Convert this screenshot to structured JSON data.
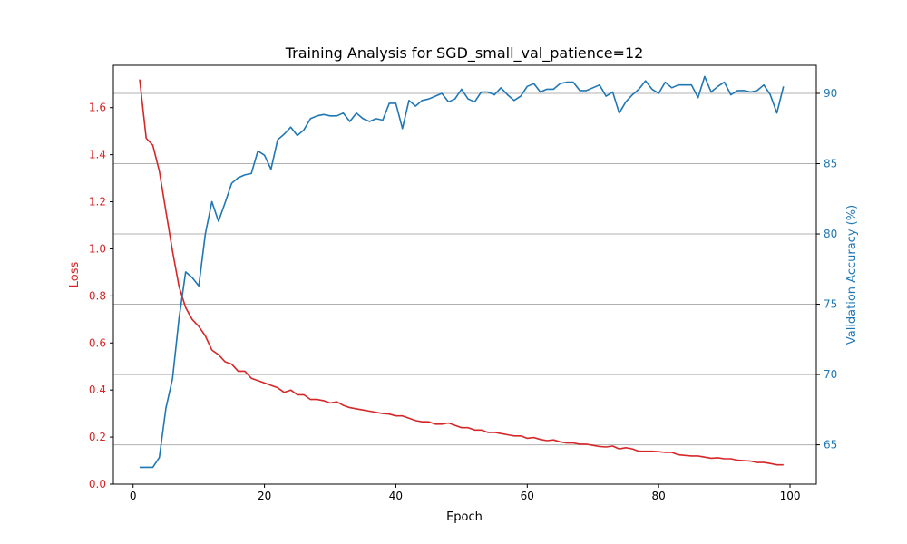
{
  "chart_data": {
    "type": "line",
    "title": "Training Analysis for SGD_small_val_patience=12",
    "xlabel": "Epoch",
    "ylabel_left": "Loss",
    "ylabel_right": "Validation Accuracy (%)",
    "xlim": [
      -3,
      104
    ],
    "ylim_left": [
      0,
      1.78
    ],
    "ylim_right": [
      62.2,
      92.0
    ],
    "x_ticks": [
      0,
      20,
      40,
      60,
      80,
      100
    ],
    "y_left_ticks": [
      0.0,
      0.2,
      0.4,
      0.6,
      0.8,
      1.0,
      1.2,
      1.4,
      1.6
    ],
    "y_right_ticks": [
      65,
      70,
      75,
      80,
      85,
      90
    ],
    "grid": "horizontal lines at right-axis ticks",
    "colors": {
      "loss": "#d62728",
      "accuracy": "#1f77b4",
      "grid": "#b0b0b0",
      "axis": "#000000"
    },
    "x": [
      1,
      2,
      3,
      4,
      5,
      6,
      7,
      8,
      9,
      10,
      11,
      12,
      13,
      14,
      15,
      16,
      17,
      18,
      19,
      20,
      21,
      22,
      23,
      24,
      25,
      26,
      27,
      28,
      29,
      30,
      31,
      32,
      33,
      34,
      35,
      36,
      37,
      38,
      39,
      40,
      41,
      42,
      43,
      44,
      45,
      46,
      47,
      48,
      49,
      50,
      51,
      52,
      53,
      54,
      55,
      56,
      57,
      58,
      59,
      60,
      61,
      62,
      63,
      64,
      65,
      66,
      67,
      68,
      69,
      70,
      71,
      72,
      73,
      74,
      75,
      76,
      77,
      78,
      79,
      80,
      81,
      82,
      83,
      84,
      85,
      86,
      87,
      88,
      89,
      90,
      91,
      92,
      93,
      94,
      95,
      96,
      97,
      98,
      99
    ],
    "series": [
      {
        "name": "Loss",
        "axis": "left",
        "values": [
          1.72,
          1.47,
          1.44,
          1.33,
          1.16,
          0.99,
          0.84,
          0.75,
          0.7,
          0.67,
          0.63,
          0.57,
          0.55,
          0.52,
          0.51,
          0.48,
          0.48,
          0.45,
          0.44,
          0.43,
          0.42,
          0.41,
          0.39,
          0.4,
          0.38,
          0.38,
          0.36,
          0.36,
          0.355,
          0.345,
          0.35,
          0.335,
          0.325,
          0.32,
          0.315,
          0.31,
          0.305,
          0.3,
          0.298,
          0.29,
          0.29,
          0.28,
          0.27,
          0.265,
          0.265,
          0.255,
          0.255,
          0.26,
          0.25,
          0.24,
          0.24,
          0.23,
          0.23,
          0.22,
          0.22,
          0.215,
          0.21,
          0.205,
          0.205,
          0.195,
          0.198,
          0.19,
          0.185,
          0.188,
          0.18,
          0.175,
          0.175,
          0.17,
          0.17,
          0.165,
          0.16,
          0.158,
          0.162,
          0.15,
          0.155,
          0.15,
          0.14,
          0.14,
          0.14,
          0.138,
          0.135,
          0.135,
          0.125,
          0.122,
          0.12,
          0.12,
          0.115,
          0.11,
          0.112,
          0.108,
          0.108,
          0.102,
          0.1,
          0.098,
          0.092,
          0.092,
          0.088,
          0.082,
          0.082
        ]
      },
      {
        "name": "Validation Accuracy (%)",
        "axis": "right",
        "values": [
          63.4,
          63.4,
          63.4,
          64.1,
          67.6,
          69.7,
          74.0,
          77.3,
          76.9,
          76.3,
          80.0,
          82.3,
          80.9,
          82.2,
          83.6,
          84.0,
          84.2,
          84.3,
          85.9,
          85.6,
          84.6,
          86.7,
          87.1,
          87.6,
          87.0,
          87.4,
          88.2,
          88.4,
          88.5,
          88.4,
          88.4,
          88.6,
          88.0,
          88.6,
          88.2,
          88.0,
          88.2,
          88.1,
          89.3,
          89.3,
          87.5,
          89.5,
          89.1,
          89.5,
          89.6,
          89.8,
          90.0,
          89.4,
          89.6,
          90.3,
          89.6,
          89.4,
          90.1,
          90.1,
          89.9,
          90.4,
          89.9,
          89.5,
          89.8,
          90.5,
          90.7,
          90.1,
          90.3,
          90.3,
          90.7,
          90.8,
          90.8,
          90.2,
          90.2,
          90.4,
          90.6,
          89.8,
          90.1,
          88.6,
          89.4,
          89.9,
          90.3,
          90.9,
          90.3,
          90.0,
          90.8,
          90.4,
          90.6,
          90.6,
          90.6,
          89.7,
          91.2,
          90.1,
          90.5,
          90.8,
          89.9,
          90.2,
          90.2,
          90.1,
          90.2,
          90.6,
          89.9,
          88.6,
          90.5
        ]
      }
    ]
  }
}
